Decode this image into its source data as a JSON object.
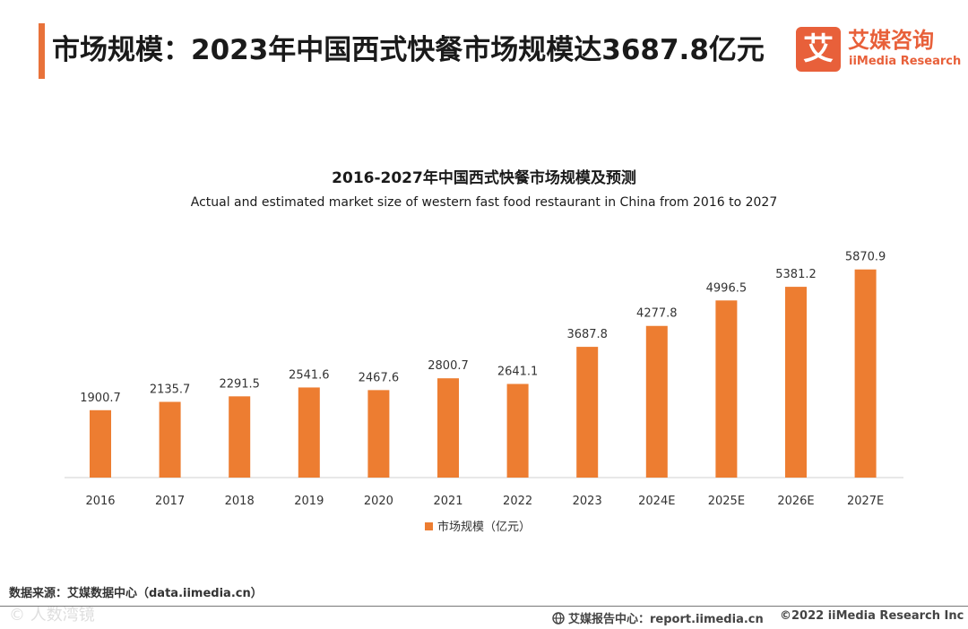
{
  "header": {
    "title": "市场规模：2023年中国西式快餐市场规模达3687.8亿元",
    "logo_mark": "艾",
    "logo_cn": "艾媒咨询",
    "logo_en": "iiMedia Research"
  },
  "colors": {
    "accent": "#e8723a",
    "bar": "#ed7d31",
    "logo": "#e8603a"
  },
  "chart_data": {
    "type": "bar",
    "title": "2016-2027年中国西式快餐市场规模及预测",
    "subtitle": "Actual and estimated market size of western fast food restaurant in China from 2016 to 2027",
    "categories": [
      "2016",
      "2017",
      "2018",
      "2019",
      "2020",
      "2021",
      "2022",
      "2023",
      "2024E",
      "2025E",
      "2026E",
      "2027E"
    ],
    "series": [
      {
        "name": "市场规模（亿元）",
        "values": [
          1900.7,
          2135.7,
          2291.5,
          2541.6,
          2467.6,
          2800.7,
          2641.1,
          3687.8,
          4277.8,
          4996.5,
          5381.2,
          5870.9
        ],
        "labels": [
          "1900.7",
          "2135.7",
          "2291.5",
          "2541.6",
          "2467.6",
          "2800.7",
          "2641.1",
          "3687.8",
          "4277.8",
          "4996.5",
          "5381.2",
          "5870.9"
        ]
      }
    ],
    "ylim": [
      0,
      6900
    ],
    "grid": false,
    "legend": "bottom"
  },
  "footer": {
    "source": "数据来源：艾媒数据中心（data.iimedia.cn）",
    "watermark": "© 人数湾镜",
    "report_site": "艾媒报告中心：report.iimedia.cn",
    "copyright": "©2022 iiMedia Research Inc"
  }
}
